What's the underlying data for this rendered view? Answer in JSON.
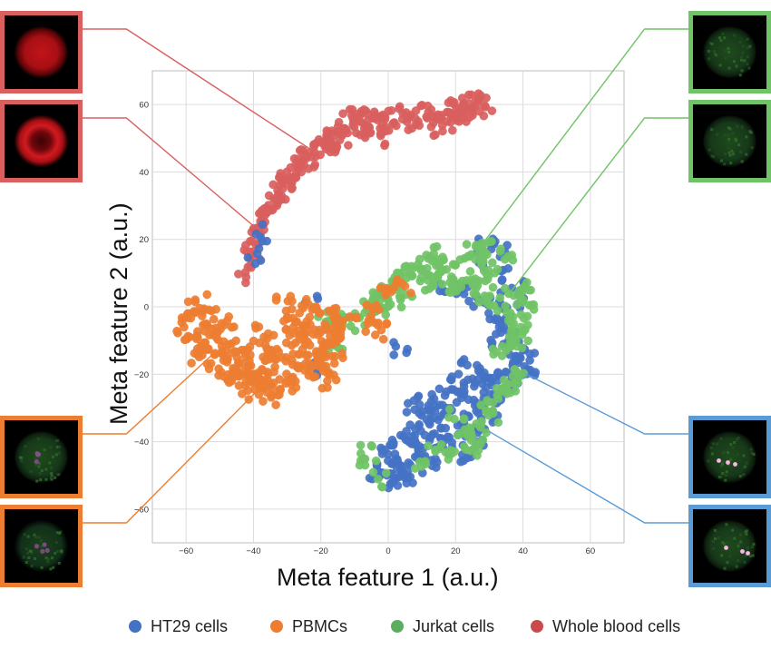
{
  "chart_data": {
    "type": "scatter",
    "xlabel": "Meta feature 1 (a.u.)",
    "ylabel": "Meta feature 2 (a.u.)",
    "xlim": [
      -70,
      70
    ],
    "ylim": [
      -70,
      70
    ],
    "xticks": [
      -60,
      -40,
      -20,
      0,
      20,
      40,
      60
    ],
    "yticks": [
      -60,
      -40,
      -20,
      0,
      20,
      40,
      60
    ],
    "grid": true,
    "legend_position": "bottom",
    "series": [
      {
        "name": "HT29 cells",
        "color": "#4472C4",
        "points": [
          [
            -4,
            -50
          ],
          [
            0,
            -52
          ],
          [
            3,
            -53
          ],
          [
            6,
            -50
          ],
          [
            8,
            -47
          ],
          [
            2,
            -46
          ],
          [
            -2,
            -45
          ],
          [
            0,
            -40
          ],
          [
            3,
            -38
          ],
          [
            6,
            -42
          ],
          [
            9,
            -40
          ],
          [
            11,
            -43
          ],
          [
            14,
            -46
          ],
          [
            16,
            -42
          ],
          [
            18,
            -38
          ],
          [
            15,
            -34
          ],
          [
            12,
            -36
          ],
          [
            9,
            -33
          ],
          [
            8,
            -29
          ],
          [
            11,
            -28
          ],
          [
            14,
            -28
          ],
          [
            17,
            -24
          ],
          [
            20,
            -22
          ],
          [
            22,
            -26
          ],
          [
            24,
            -30
          ],
          [
            22,
            -36
          ],
          [
            20,
            -40
          ],
          [
            24,
            -44
          ],
          [
            27,
            -40
          ],
          [
            29,
            -35
          ],
          [
            31,
            -30
          ],
          [
            28,
            -26
          ],
          [
            26,
            -22
          ],
          [
            24,
            -18
          ],
          [
            27,
            -19
          ],
          [
            30,
            -22
          ],
          [
            33,
            -24
          ],
          [
            35,
            -20
          ],
          [
            37,
            -16
          ],
          [
            40,
            -18
          ],
          [
            42,
            -20
          ],
          [
            40,
            -14
          ],
          [
            38,
            -12
          ],
          [
            36,
            -8
          ],
          [
            34,
            -6
          ],
          [
            33,
            -10
          ],
          [
            35,
            -2
          ],
          [
            31,
            2
          ],
          [
            27,
            2
          ],
          [
            22,
            4
          ],
          [
            20,
            6
          ],
          [
            17,
            5
          ],
          [
            26,
            14
          ],
          [
            29,
            20
          ],
          [
            33,
            17
          ],
          [
            36,
            10
          ],
          [
            38,
            6
          ],
          [
            40,
            2
          ],
          [
            32,
            -4
          ],
          [
            -38,
            22
          ],
          [
            -40,
            15
          ],
          [
            -21,
            -18
          ],
          [
            -23,
            1
          ],
          [
            4,
            -12
          ],
          [
            -1,
            -48
          ],
          [
            5,
            -48
          ],
          [
            13,
            -31
          ],
          [
            19,
            -30
          ],
          [
            25,
            -34
          ],
          [
            30,
            -28
          ],
          [
            36,
            -22
          ],
          [
            41,
            -15
          ],
          [
            37,
            -20
          ],
          [
            23,
            -24
          ],
          [
            10,
            -38
          ],
          [
            1,
            -43
          ]
        ],
        "jitter": 1.6,
        "copies": 5
      },
      {
        "name": "PBMCs",
        "color": "#ED7D31",
        "points": [
          [
            -60,
            -7
          ],
          [
            -59,
            -4
          ],
          [
            -58,
            -10
          ],
          [
            -56,
            -14
          ],
          [
            -55,
            -8
          ],
          [
            -57,
            -1
          ],
          [
            -55,
            1
          ],
          [
            -53,
            -3
          ],
          [
            -52,
            -9
          ],
          [
            -54,
            -16
          ],
          [
            -51,
            -14
          ],
          [
            -49,
            -10
          ],
          [
            -48,
            -5
          ],
          [
            -47,
            -13
          ],
          [
            -46,
            -18
          ],
          [
            -44,
            -11
          ],
          [
            -44,
            -20
          ],
          [
            -43,
            -16
          ],
          [
            -41,
            -22
          ],
          [
            -42,
            -25
          ],
          [
            -40,
            -19
          ],
          [
            -39,
            -14
          ],
          [
            -38,
            -8
          ],
          [
            -36,
            -11
          ],
          [
            -35,
            -17
          ],
          [
            -34,
            -22
          ],
          [
            -36,
            -24
          ],
          [
            -37,
            -26
          ],
          [
            -33,
            -15
          ],
          [
            -31,
            -20
          ],
          [
            -30,
            -24
          ],
          [
            -29,
            -17
          ],
          [
            -28,
            -12
          ],
          [
            -27,
            -6
          ],
          [
            -29,
            -2
          ],
          [
            -31,
            1
          ],
          [
            -26,
            0
          ],
          [
            -25,
            -5
          ],
          [
            -24,
            -9
          ],
          [
            -23,
            -14
          ],
          [
            -21,
            -19
          ],
          [
            -20,
            -22
          ],
          [
            -19,
            -17
          ],
          [
            -19,
            -12
          ],
          [
            -18,
            -6
          ],
          [
            -20,
            -2
          ],
          [
            -22,
            -8
          ],
          [
            -17,
            -2
          ],
          [
            -15,
            -4
          ],
          [
            -14,
            -9
          ],
          [
            -16,
            -13
          ],
          [
            -18,
            -19
          ],
          [
            -12,
            -5
          ],
          [
            -6,
            -2
          ],
          [
            -4,
            -7
          ],
          [
            -3,
            -3
          ],
          [
            -1,
            3
          ],
          [
            4,
            6
          ],
          [
            -48,
            -20
          ],
          [
            -33,
            -27
          ],
          [
            -24,
            -19
          ],
          [
            -16,
            -11
          ],
          [
            -54,
            -12
          ],
          [
            -50,
            -19
          ],
          [
            -38,
            -20
          ],
          [
            -28,
            -8
          ]
        ],
        "jitter": 1.7,
        "copies": 6
      },
      {
        "name": "Jurkat cells",
        "color": "#70C366",
        "points": [
          [
            -18,
            -4
          ],
          [
            -15,
            -3
          ],
          [
            -8,
            -3
          ],
          [
            -5,
            -2
          ],
          [
            -6,
            3
          ],
          [
            -3,
            2
          ],
          [
            -1,
            4
          ],
          [
            0,
            6
          ],
          [
            1,
            8
          ],
          [
            3,
            9
          ],
          [
            6,
            10
          ],
          [
            8,
            11
          ],
          [
            10,
            12
          ],
          [
            11,
            10
          ],
          [
            13,
            14
          ],
          [
            15,
            16
          ],
          [
            14,
            12
          ],
          [
            16,
            11
          ],
          [
            18,
            13
          ],
          [
            17,
            8
          ],
          [
            19,
            7
          ],
          [
            21,
            10
          ],
          [
            23,
            13
          ],
          [
            25,
            16
          ],
          [
            27,
            18
          ],
          [
            29,
            17
          ],
          [
            31,
            15
          ],
          [
            30,
            12
          ],
          [
            28,
            10
          ],
          [
            27,
            6
          ],
          [
            29,
            4
          ],
          [
            32,
            1
          ],
          [
            34,
            -2
          ],
          [
            37,
            -4
          ],
          [
            39,
            -6
          ],
          [
            41,
            -1
          ],
          [
            42,
            3
          ],
          [
            40,
            5
          ],
          [
            37,
            3
          ],
          [
            36,
            -10
          ],
          [
            38,
            -12
          ],
          [
            40,
            -19
          ],
          [
            38,
            -22
          ],
          [
            35,
            -24
          ],
          [
            32,
            -26
          ],
          [
            29,
            -30
          ],
          [
            31,
            -32
          ],
          [
            26,
            -35
          ],
          [
            22,
            -38
          ],
          [
            -7,
            -43
          ],
          [
            -6,
            -47
          ],
          [
            -2,
            -51
          ],
          [
            10,
            -46
          ],
          [
            14,
            -42
          ],
          [
            20,
            -32
          ],
          [
            24,
            -41
          ],
          [
            27,
            -38
          ],
          [
            36,
            -26
          ],
          [
            39,
            -8
          ],
          [
            33,
            -14
          ],
          [
            35,
            13
          ],
          [
            25,
            7
          ],
          [
            20,
            4
          ],
          [
            12,
            7
          ],
          [
            5,
            5
          ],
          [
            2,
            2
          ],
          [
            -2,
            0
          ],
          [
            -11,
            -5
          ],
          [
            -20,
            -2
          ],
          [
            -16,
            -14
          ],
          [
            19,
            -44
          ],
          [
            28,
            -42
          ]
        ],
        "jitter": 1.6,
        "copies": 5
      },
      {
        "name": "Whole blood cells",
        "color": "#D9605E",
        "points": [
          [
            -43,
            8
          ],
          [
            -42,
            13
          ],
          [
            -41,
            17
          ],
          [
            -40,
            20
          ],
          [
            -39,
            23
          ],
          [
            -38,
            26
          ],
          [
            -37,
            29
          ],
          [
            -35,
            31
          ],
          [
            -33,
            33
          ],
          [
            -32,
            36
          ],
          [
            -30,
            38
          ],
          [
            -28,
            40
          ],
          [
            -26,
            42
          ],
          [
            -25,
            45
          ],
          [
            -23,
            46
          ],
          [
            -21,
            48
          ],
          [
            -19,
            49
          ],
          [
            -17,
            51
          ],
          [
            -15,
            52
          ],
          [
            -13,
            53
          ],
          [
            -11,
            54
          ],
          [
            -9,
            55
          ],
          [
            -7,
            56
          ],
          [
            -5,
            57
          ],
          [
            -3,
            56
          ],
          [
            -6,
            54
          ],
          [
            -10,
            52
          ],
          [
            -14,
            50
          ],
          [
            -18,
            47
          ],
          [
            -22,
            44
          ],
          [
            -26,
            40
          ],
          [
            -30,
            36
          ],
          [
            -34,
            32
          ],
          [
            -38,
            24
          ],
          [
            -1,
            55
          ],
          [
            1,
            54
          ],
          [
            3,
            56
          ],
          [
            6,
            55
          ],
          [
            8,
            54
          ],
          [
            10,
            56
          ],
          [
            12,
            55
          ],
          [
            14,
            57
          ],
          [
            16,
            58
          ],
          [
            18,
            59
          ],
          [
            20,
            59
          ],
          [
            22,
            60
          ],
          [
            24,
            61
          ],
          [
            26,
            62
          ],
          [
            28,
            62
          ],
          [
            29,
            60
          ],
          [
            27,
            58
          ],
          [
            25,
            58
          ],
          [
            23,
            57
          ],
          [
            21,
            56
          ],
          [
            19,
            55
          ],
          [
            17,
            54
          ],
          [
            15,
            53
          ],
          [
            -4,
            52
          ],
          [
            -8,
            51
          ],
          [
            -2,
            58
          ],
          [
            -24,
            43
          ],
          [
            -28,
            37
          ],
          [
            -32,
            34
          ],
          [
            -36,
            27
          ],
          [
            -40,
            15
          ],
          [
            -16,
            48
          ],
          [
            -12,
            57
          ],
          [
            5,
            58
          ],
          [
            11,
            58
          ],
          [
            -20,
            50
          ],
          [
            -31,
            39
          ],
          [
            -35,
            29
          ],
          [
            -8,
            57
          ],
          [
            -17,
            46
          ],
          [
            -3,
            50
          ]
        ],
        "jitter": 1.4,
        "copies": 4
      }
    ]
  },
  "legend": [
    {
      "label": "HT29 cells",
      "color": "#4472C4"
    },
    {
      "label": "PBMCs",
      "color": "#ED7D31"
    },
    {
      "label": "Jurkat cells",
      "color": "#70C366"
    },
    {
      "label": "Whole blood cells",
      "color": "#D9605E"
    }
  ],
  "insets": [
    {
      "kind": "whole-blood-cell-image",
      "border": "#D9605E",
      "cell": "red",
      "target": [
        -22,
        46
      ]
    },
    {
      "kind": "whole-blood-cell-image",
      "border": "#D9605E",
      "cell": "red-ring",
      "target": [
        -40,
        24
      ]
    },
    {
      "kind": "jurkat-cell-image",
      "border": "#70C366",
      "cell": "green",
      "target": [
        29,
        20
      ]
    },
    {
      "kind": "jurkat-cell-image",
      "border": "#70C366",
      "cell": "green",
      "target": [
        36,
        4
      ]
    },
    {
      "kind": "pbmc-cell-image",
      "border": "#ED7D31",
      "cell": "green-magenta",
      "target": [
        -52,
        -14
      ]
    },
    {
      "kind": "pbmc-cell-image",
      "border": "#ED7D31",
      "cell": "green-dim",
      "target": [
        -38,
        -24
      ]
    },
    {
      "kind": "ht29-cell-image",
      "border": "#5B9BD5",
      "cell": "green-spots",
      "target": [
        41,
        -20
      ]
    },
    {
      "kind": "ht29-cell-image",
      "border": "#5B9BD5",
      "cell": "green-spots",
      "target": [
        30,
        -37
      ]
    }
  ]
}
